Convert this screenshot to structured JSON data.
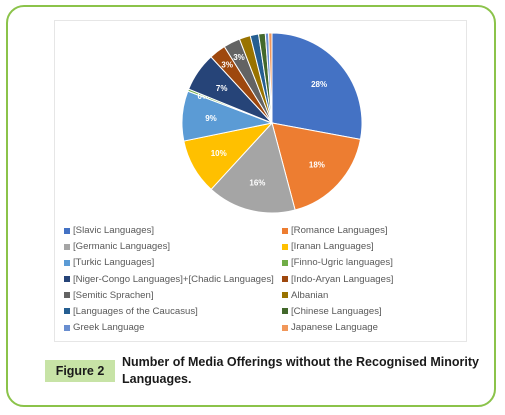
{
  "chart_data": {
    "type": "pie",
    "slices": [
      {
        "name": "[Slavic Languages]",
        "value": 28,
        "label": "28%",
        "color": "#4472c4"
      },
      {
        "name": "[Romance Languages]",
        "value": 18,
        "label": "18%",
        "color": "#ed7d31"
      },
      {
        "name": "[Germanic Languages]",
        "value": 16,
        "label": "16%",
        "color": "#a5a5a5"
      },
      {
        "name": "[Iranan Languages]",
        "value": 10,
        "label": "10%",
        "color": "#ffc000"
      },
      {
        "name": "[Turkic Languages]",
        "value": 9,
        "label": "9%",
        "color": "#5b9bd5"
      },
      {
        "name": "[Finno-Ugric languages]",
        "value": 0.4,
        "label": "0%",
        "color": "#70ad47"
      },
      {
        "name": "[Niger-Congo Languages]+[Chadic Languages]",
        "value": 7,
        "label": "7%",
        "color": "#264478"
      },
      {
        "name": "[Indo-Aryan Languages]",
        "value": 3,
        "label": "3%",
        "color": "#9e480e"
      },
      {
        "name": "[Semitic Sprachen]",
        "value": 3,
        "label": "3%",
        "color": "#636363"
      },
      {
        "name": "Albanian",
        "value": 2,
        "label": "",
        "color": "#997300"
      },
      {
        "name": "[Languages of the Caucasus]",
        "value": 1.5,
        "label": "",
        "color": "#255e91"
      },
      {
        "name": "[Chinese Languages]",
        "value": 1.2,
        "label": "",
        "color": "#43682b"
      },
      {
        "name": "Greek Language",
        "value": 0.6,
        "label": "",
        "color": "#698ed0"
      },
      {
        "name": "Japanese Language",
        "value": 0.6,
        "label": "",
        "color": "#f1975a"
      }
    ],
    "title": "",
    "legend_position": "bottom"
  },
  "caption": {
    "figure_label": "Figure 2",
    "text": "Number of Media Offerings without the Recognised Minority Languages."
  },
  "colors": {
    "frame_border": "#8bc34a",
    "badge_background": "#c7e3a6"
  }
}
